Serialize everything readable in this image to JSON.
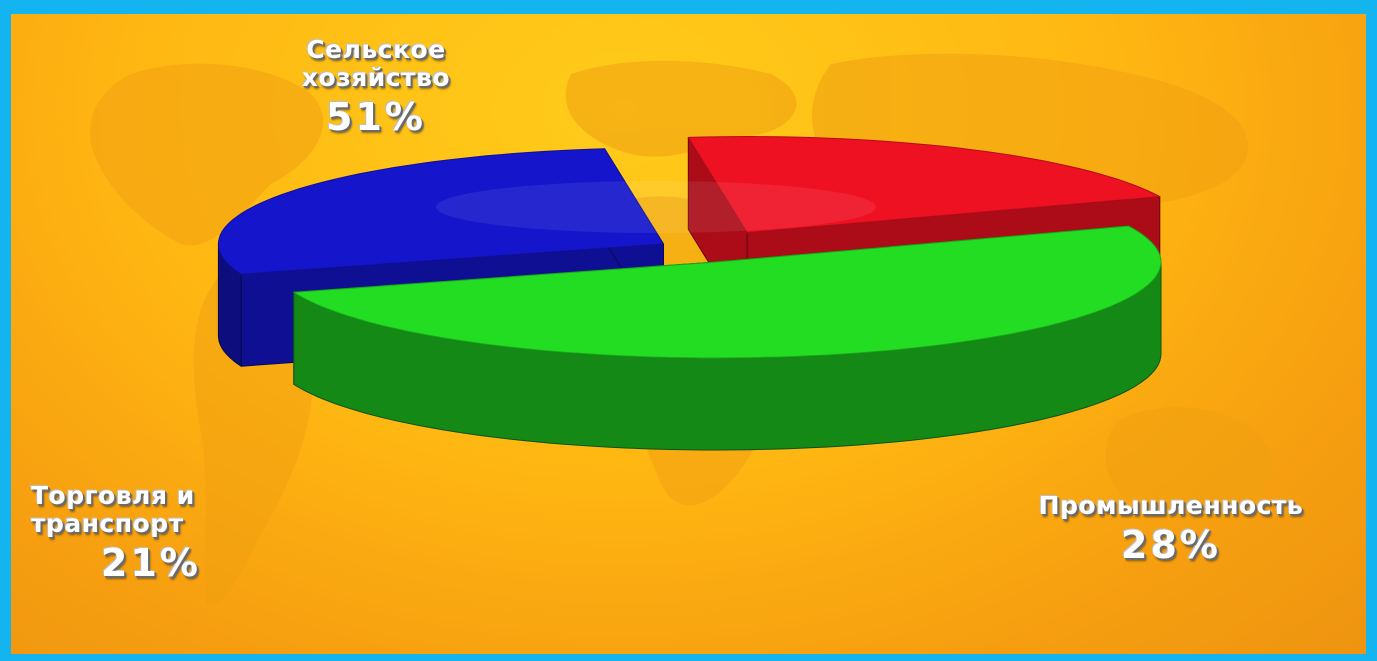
{
  "chart_data": {
    "type": "pie",
    "categories": [
      "Сельское хозяйство",
      "Промышленность",
      "Торговля и транспорт"
    ],
    "values": [
      51,
      28,
      21
    ],
    "labels": [
      {
        "name_lines": [
          "Сельское",
          "хозяйство"
        ],
        "pct": "51%"
      },
      {
        "name_lines": [
          "Промышленность"
        ],
        "pct": "28%"
      },
      {
        "name_lines": [
          "Торговля и",
          "транспорт"
        ],
        "pct": "21%"
      }
    ],
    "colors": {
      "Сельское хозяйство": "#22dd22",
      "Промышленность": "#1515cc",
      "Торговля и транспорт": "#ee1122"
    },
    "style": "3d-exploded",
    "exploded": [
      "Промышленность",
      "Торговля и транспорт"
    ],
    "legend": "none"
  },
  "colors": {
    "frame_border": "#14b4f0",
    "background": "#ffb812",
    "map_shadow": "#e89a0e"
  }
}
